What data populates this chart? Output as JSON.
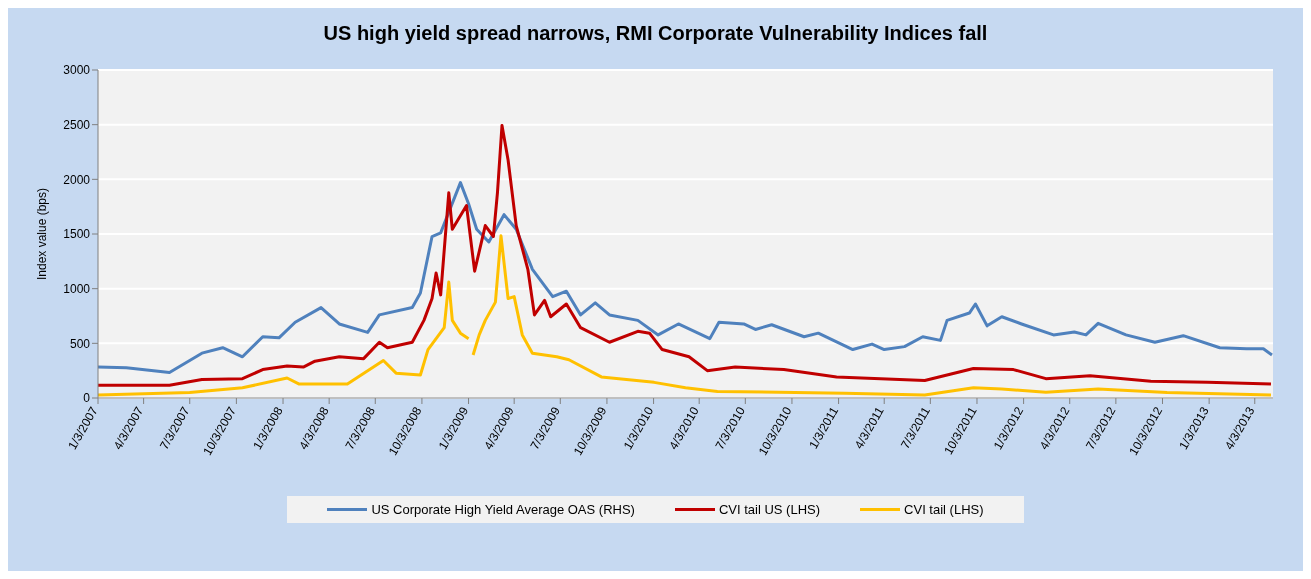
{
  "chart_data": {
    "type": "line",
    "title": "US high yield spread narrows, RMI Corporate Vulnerability Indices fall",
    "ylabel": "Index value (bps)",
    "xlim": [
      "2007-01-03",
      "2013-05-09"
    ],
    "xticks": [
      {
        "value": "2007-01-03",
        "label": "1/3/2007"
      },
      {
        "value": "2007-04-03",
        "label": "4/3/2007"
      },
      {
        "value": "2007-07-03",
        "label": "7/3/2007"
      },
      {
        "value": "2007-10-03",
        "label": "10/3/2007"
      },
      {
        "value": "2008-01-03",
        "label": "1/3/2008"
      },
      {
        "value": "2008-04-03",
        "label": "4/3/2008"
      },
      {
        "value": "2008-07-03",
        "label": "7/3/2008"
      },
      {
        "value": "2008-10-03",
        "label": "10/3/2008"
      },
      {
        "value": "2009-01-03",
        "label": "1/3/2009"
      },
      {
        "value": "2009-04-03",
        "label": "4/3/2009"
      },
      {
        "value": "2009-07-03",
        "label": "7/3/2009"
      },
      {
        "value": "2009-10-03",
        "label": "10/3/2009"
      },
      {
        "value": "2010-01-03",
        "label": "1/3/2010"
      },
      {
        "value": "2010-04-03",
        "label": "4/3/2010"
      },
      {
        "value": "2010-07-03",
        "label": "7/3/2010"
      },
      {
        "value": "2010-10-03",
        "label": "10/3/2010"
      },
      {
        "value": "2011-01-03",
        "label": "1/3/2011"
      },
      {
        "value": "2011-04-03",
        "label": "4/3/2011"
      },
      {
        "value": "2011-07-03",
        "label": "7/3/2011"
      },
      {
        "value": "2011-10-03",
        "label": "10/3/2011"
      },
      {
        "value": "2012-01-03",
        "label": "1/3/2012"
      },
      {
        "value": "2012-04-03",
        "label": "4/3/2012"
      },
      {
        "value": "2012-07-03",
        "label": "7/3/2012"
      },
      {
        "value": "2012-10-03",
        "label": "10/3/2012"
      },
      {
        "value": "2013-01-03",
        "label": "1/3/2013"
      },
      {
        "value": "2013-04-03",
        "label": "4/3/2013"
      }
    ],
    "ylim": [
      0,
      3000
    ],
    "yticks": [
      0,
      500,
      1000,
      1500,
      2000,
      2500,
      3000
    ],
    "grid": "y",
    "legend": "bottom",
    "line_style": "solid",
    "marker": "none",
    "series": [
      {
        "name": "US Corporate High Yield Average OAS (RHS)",
        "color": "#4f81bd",
        "x": [
          "2007-01-03",
          "2007-02-28",
          "2007-05-24",
          "2007-07-27",
          "2007-09-06",
          "2007-10-15",
          "2007-11-24",
          "2007-12-26",
          "2008-01-27",
          "2008-03-18",
          "2008-04-23",
          "2008-06-18",
          "2008-07-11",
          "2008-09-14",
          "2008-09-30",
          "2008-10-23",
          "2008-11-09",
          "2008-12-18",
          "2009-01-03",
          "2009-01-19",
          "2009-02-12",
          "2009-03-14",
          "2009-04-07",
          "2009-05-09",
          "2009-06-18",
          "2009-07-15",
          "2009-08-12",
          "2009-09-10",
          "2009-10-08",
          "2009-12-03",
          "2010-01-12",
          "2010-02-21",
          "2010-04-24",
          "2010-05-12",
          "2010-06-30",
          "2010-07-23",
          "2010-08-24",
          "2010-10-27",
          "2010-11-24",
          "2011-01-31",
          "2011-03-10",
          "2011-04-03",
          "2011-05-13",
          "2011-06-18",
          "2011-07-23",
          "2011-08-05",
          "2011-09-18",
          "2011-09-30",
          "2011-10-23",
          "2011-11-21",
          "2011-12-30",
          "2012-03-02",
          "2012-04-12",
          "2012-05-05",
          "2012-05-29",
          "2012-07-23",
          "2012-09-18",
          "2012-11-13",
          "2013-01-24",
          "2013-03-18",
          "2013-04-20",
          "2013-05-07"
        ],
        "values": [
          283,
          277,
          233,
          410,
          460,
          377,
          560,
          550,
          693,
          827,
          677,
          600,
          760,
          827,
          960,
          1477,
          1510,
          1970,
          1777,
          1543,
          1427,
          1677,
          1543,
          1177,
          927,
          977,
          760,
          870,
          760,
          710,
          577,
          677,
          543,
          693,
          677,
          627,
          670,
          560,
          593,
          443,
          493,
          443,
          470,
          560,
          527,
          710,
          777,
          860,
          660,
          743,
          677,
          577,
          603,
          577,
          683,
          577,
          510,
          570,
          460,
          450,
          450,
          393
        ]
      },
      {
        "name": "CVI tail US (LHS)",
        "color": "#c00000",
        "x": [
          "2007-01-03",
          "2007-05-24",
          "2007-07-27",
          "2007-10-15",
          "2007-11-24",
          "2008-01-11",
          "2008-02-12",
          "2008-03-06",
          "2008-04-23",
          "2008-06-10",
          "2008-07-11",
          "2008-07-27",
          "2008-09-14",
          "2008-10-07",
          "2008-10-23",
          "2008-10-31",
          "2008-11-09",
          "2008-11-25",
          "2008-12-02",
          "2008-12-30",
          "2009-01-15",
          "2009-02-05",
          "2009-02-21",
          "2009-03-01",
          "2009-03-10",
          "2009-03-22",
          "2009-04-07",
          "2009-04-30",
          "2009-05-13",
          "2009-06-02",
          "2009-06-14",
          "2009-07-15",
          "2009-08-12",
          "2009-10-08",
          "2009-12-03",
          "2009-12-26",
          "2010-01-20",
          "2010-03-14",
          "2010-04-19",
          "2010-06-13",
          "2010-09-17",
          "2010-12-30",
          "2011-06-22",
          "2011-09-26",
          "2011-12-14",
          "2012-02-16",
          "2012-05-13",
          "2012-09-10",
          "2012-12-31",
          "2013-05-05"
        ],
        "values": [
          117,
          117,
          170,
          177,
          260,
          293,
          283,
          337,
          377,
          360,
          510,
          460,
          510,
          710,
          910,
          1143,
          943,
          1877,
          1543,
          1760,
          1160,
          1577,
          1477,
          1877,
          2493,
          2177,
          1577,
          1177,
          760,
          893,
          743,
          860,
          643,
          510,
          610,
          593,
          443,
          377,
          250,
          283,
          260,
          193,
          160,
          270,
          260,
          177,
          203,
          153,
          143,
          127
        ]
      },
      {
        "name": "CVI tail (LHS)",
        "color": "#ffc000",
        "x": [
          "2007-01-03",
          "2007-07-03",
          "2007-10-15",
          "2008-01-11",
          "2008-02-04",
          "2008-05-09",
          "2008-07-19",
          "2008-08-13",
          "2008-09-30",
          "2008-10-15",
          "2008-11-16",
          "2008-11-25",
          "2008-12-02",
          "2008-12-18",
          "2009-01-03",
          "2009-01-08",
          "2009-01-12",
          "2009-01-24",
          "2009-02-05",
          "2009-02-25",
          "2009-03-08",
          "2009-03-22",
          "2009-04-03",
          "2009-04-19",
          "2009-05-09",
          "2009-06-26",
          "2009-07-20",
          "2009-09-22",
          "2010-01-04",
          "2010-03-07",
          "2010-05-09",
          "2011-01-15",
          "2011-06-22",
          "2011-09-26",
          "2011-11-21",
          "2012-02-16",
          "2012-05-29",
          "2012-10-12",
          "2013-05-05"
        ],
        "values": [
          27,
          50,
          93,
          183,
          127,
          127,
          343,
          227,
          210,
          443,
          643,
          1060,
          710,
          593,
          543,
          null,
          393,
          577,
          710,
          877,
          1483,
          910,
          927,
          577,
          410,
          377,
          350,
          193,
          143,
          93,
          60,
          43,
          27,
          93,
          83,
          53,
          83,
          50,
          27
        ]
      }
    ]
  }
}
